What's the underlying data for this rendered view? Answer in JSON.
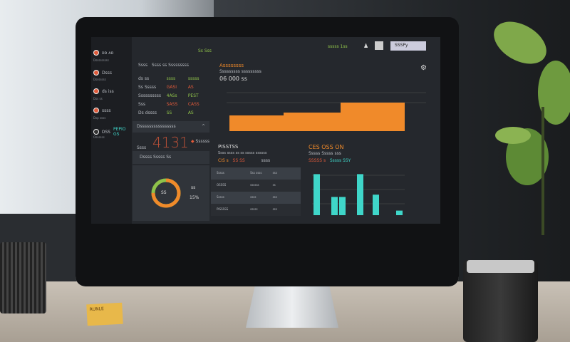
{
  "sidebar": {
    "items": [
      {
        "label": "ᴅᴅ ᴀᴅ",
        "sub": "Dsssssssss"
      },
      {
        "label": "Dsss",
        "sub": "Dsssssss"
      },
      {
        "label": "ds iss",
        "sub": "Dss ss"
      },
      {
        "label": "ssss",
        "sub": "Dsp ssss"
      },
      {
        "label": "OSS",
        "sub": "Ossssss",
        "extra": "PEPIO GS"
      }
    ]
  },
  "header": {
    "center": "Ss Sss",
    "status": "sssss 1ss",
    "user_button": "SSSPy"
  },
  "stats": {
    "title_left": "Ssss",
    "title_right": "Ssss ss Sssssssss",
    "rows": [
      [
        "ds ss",
        "ssss",
        "sssss"
      ],
      [
        "Ss Sssss",
        "GASI",
        "AS"
      ],
      [
        "Ssssssssss",
        "4ASs",
        "PEST"
      ],
      [
        "Sss",
        "SASS",
        "CASS"
      ],
      [
        "Ds dssss",
        "SS",
        "AS"
      ]
    ]
  },
  "dropdown": {
    "label": "Dssssssssssssssss"
  },
  "big_number": {
    "label": "Ssss",
    "value": "4131",
    "tag": "Ssssss"
  },
  "gauge_panel": {
    "title": "Dssss Sssss Ss",
    "center": "SS",
    "side1": "ss",
    "side2": "15%",
    "percent": 75,
    "color_ring": "#8fc24a",
    "color_arc": "#f08a2a"
  },
  "area_chart": {
    "title": "Assssssss",
    "subtitle": "Sssssssss sssssssss",
    "value": "06 000 ss",
    "color": "#f08a2a"
  },
  "table_panel": {
    "title": "PISSTSS",
    "subtitle": "Ssss ssss ss ss sssss ssssss",
    "v1": "CIS s",
    "v2": "SS SS",
    "v3": "ssss",
    "rows": [
      [
        "Sssss",
        "Sss ssss",
        "sss"
      ],
      [
        "OSSSS",
        "ssssss",
        "ss"
      ],
      [
        "Sssss",
        "ssss",
        "sss"
      ],
      [
        "PISSSSS",
        "sssss",
        "sss"
      ]
    ]
  },
  "bar_chart": {
    "title": "CES OSS ON",
    "subtitle": "Sssss Sssss sss",
    "v1": "SSSSS s",
    "v2": "Sssss SSY",
    "color": "#3fd6c9",
    "values": [
      72,
      32,
      32,
      72,
      36,
      8
    ]
  },
  "note": {
    "text": "RUNLE"
  }
}
